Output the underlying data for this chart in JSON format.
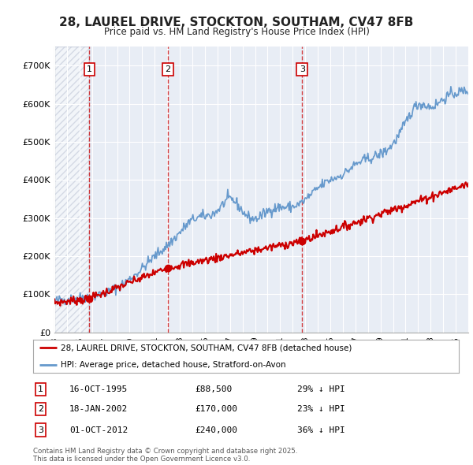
{
  "title_line1": "28, LAUREL DRIVE, STOCKTON, SOUTHAM, CV47 8FB",
  "title_line2": "Price paid vs. HM Land Registry's House Price Index (HPI)",
  "legend_label_red": "28, LAUREL DRIVE, STOCKTON, SOUTHAM, CV47 8FB (detached house)",
  "legend_label_blue": "HPI: Average price, detached house, Stratford-on-Avon",
  "purchases": [
    {
      "num": 1,
      "date": "16-OCT-1995",
      "price": 88500,
      "note": "29% ↓ HPI",
      "year_x": 1995.79
    },
    {
      "num": 2,
      "date": "18-JAN-2002",
      "price": 170000,
      "note": "23% ↓ HPI",
      "year_x": 2002.04
    },
    {
      "num": 3,
      "date": "01-OCT-2012",
      "price": 240000,
      "note": "36% ↓ HPI",
      "year_x": 2012.75
    }
  ],
  "footer_line1": "Contains HM Land Registry data © Crown copyright and database right 2025.",
  "footer_line2": "This data is licensed under the Open Government Licence v3.0.",
  "color_red": "#cc0000",
  "color_blue": "#6699cc",
  "background_color": "#ffffff",
  "plot_bg_color": "#e8edf5",
  "ylim": [
    0,
    750000
  ],
  "xlim_start": 1993,
  "xlim_end": 2026,
  "hpi_anchors_x": [
    1993,
    1994,
    1995,
    1996,
    1997,
    1998,
    1999,
    2000,
    2001,
    2002,
    2003,
    2004,
    2005,
    2006,
    2007,
    2008,
    2009,
    2010,
    2011,
    2012,
    2013,
    2014,
    2015,
    2016,
    2017,
    2018,
    2019,
    2020,
    2021,
    2022,
    2023,
    2024,
    2025,
    2026
  ],
  "hpi_anchors_y": [
    82000,
    87000,
    91000,
    96000,
    103000,
    118000,
    140000,
    168000,
    200000,
    228000,
    262000,
    295000,
    305000,
    320000,
    350000,
    318000,
    298000,
    318000,
    328000,
    330000,
    348000,
    378000,
    400000,
    415000,
    440000,
    455000,
    468000,
    495000,
    550000,
    598000,
    592000,
    612000,
    628000,
    635000
  ],
  "red_anchors_x": [
    1993.0,
    1995.79,
    2002.04,
    2012.75,
    2026.0
  ],
  "red_anchors_y": [
    78000,
    88500,
    170000,
    240000,
    390000
  ]
}
